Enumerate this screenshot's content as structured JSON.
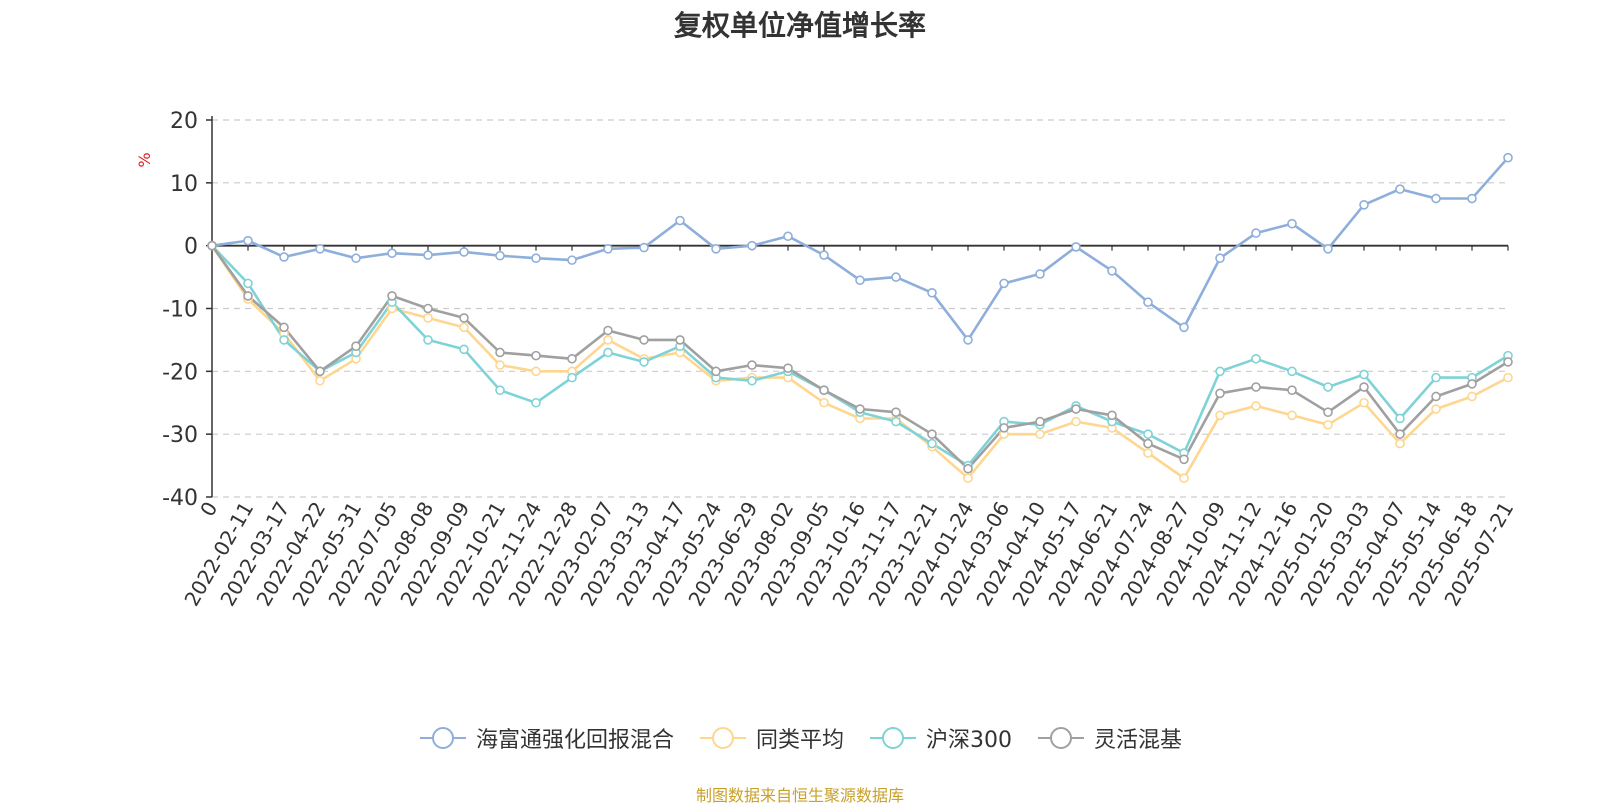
{
  "chart_data": {
    "type": "line",
    "title": "复权单位净值增长率",
    "ylabel": "%",
    "xlabel": "",
    "ylim": [
      -40,
      20
    ],
    "yticks": [
      20,
      10,
      0,
      -10,
      -20,
      -30,
      -40
    ],
    "x_tick_labels": [
      "0",
      "2022-02-11",
      "2022-03-17",
      "2022-04-22",
      "2022-05-31",
      "2022-07-05",
      "2022-08-08",
      "2022-09-09",
      "2022-10-21",
      "2022-11-24",
      "2022-12-28",
      "2023-02-07",
      "2023-03-13",
      "2023-04-17",
      "2023-05-24",
      "2023-06-29",
      "2023-08-02",
      "2023-09-05",
      "2023-10-16",
      "2023-11-17",
      "2023-12-21",
      "2024-01-24",
      "2024-03-06",
      "2024-04-10",
      "2024-05-17",
      "2024-06-21",
      "2024-07-24",
      "2024-08-27",
      "2024-10-09",
      "2024-11-12",
      "2024-12-16",
      "2025-01-20",
      "2025-03-03",
      "2025-04-07",
      "2025-05-14",
      "2025-06-18",
      "2025-07-21"
    ],
    "grid": true,
    "legend_position": "bottom",
    "series": [
      {
        "name": "海富通强化回报混合",
        "color": "#8eaedb",
        "values": [
          0,
          0.8,
          -1.8,
          -0.5,
          -2.0,
          -1.2,
          -1.5,
          -1.0,
          -1.6,
          -2.0,
          -2.3,
          -0.5,
          -0.3,
          4.0,
          -0.5,
          0.0,
          1.5,
          -1.5,
          -5.5,
          -5.0,
          -7.5,
          -15.0,
          -6.0,
          -4.5,
          -0.2,
          -4.0,
          -9.0,
          -13.0,
          -2.0,
          2.0,
          3.5,
          -0.5,
          6.5,
          9.0,
          7.5,
          7.5,
          14.0
        ]
      },
      {
        "name": "同类平均",
        "color": "#ffd68f",
        "values": [
          0,
          -8.5,
          -14.0,
          -21.5,
          -18.0,
          -10.0,
          -11.5,
          -13.0,
          -19.0,
          -20.0,
          -20.0,
          -15.0,
          -18.0,
          -17.0,
          -21.5,
          -21.0,
          -21.0,
          -25.0,
          -27.5,
          -27.5,
          -32.0,
          -37.0,
          -30.0,
          -30.0,
          -28.0,
          -29.0,
          -33.0,
          -37.0,
          -27.0,
          -25.5,
          -27.0,
          -28.5,
          -25.0,
          -31.5,
          -26.0,
          -24.0,
          -21.0
        ]
      },
      {
        "name": "沪深300",
        "color": "#7fd3d6",
        "values": [
          0,
          -6.0,
          -15.0,
          -20.0,
          -17.0,
          -9.0,
          -15.0,
          -16.5,
          -23.0,
          -25.0,
          -21.0,
          -17.0,
          -18.5,
          -16.0,
          -21.0,
          -21.5,
          -20.0,
          -23.0,
          -26.5,
          -28.0,
          -31.5,
          -35.0,
          -28.0,
          -28.5,
          -25.5,
          -28.0,
          -30.0,
          -33.0,
          -20.0,
          -18.0,
          -20.0,
          -22.5,
          -20.5,
          -27.5,
          -21.0,
          -21.0,
          -17.5
        ]
      },
      {
        "name": "灵活混基",
        "color": "#a0a0a0",
        "values": [
          0,
          -8.0,
          -13.0,
          -20.0,
          -16.0,
          -8.0,
          -10.0,
          -11.5,
          -17.0,
          -17.5,
          -18.0,
          -13.5,
          -15.0,
          -15.0,
          -20.0,
          -19.0,
          -19.5,
          -23.0,
          -26.0,
          -26.5,
          -30.0,
          -35.5,
          -29.0,
          -28.0,
          -26.0,
          -27.0,
          -31.5,
          -34.0,
          -23.5,
          -22.5,
          -23.0,
          -26.5,
          -22.5,
          -30.0,
          -24.0,
          -22.0,
          -18.5
        ]
      }
    ]
  },
  "source_note": "制图数据来自恒生聚源数据库"
}
